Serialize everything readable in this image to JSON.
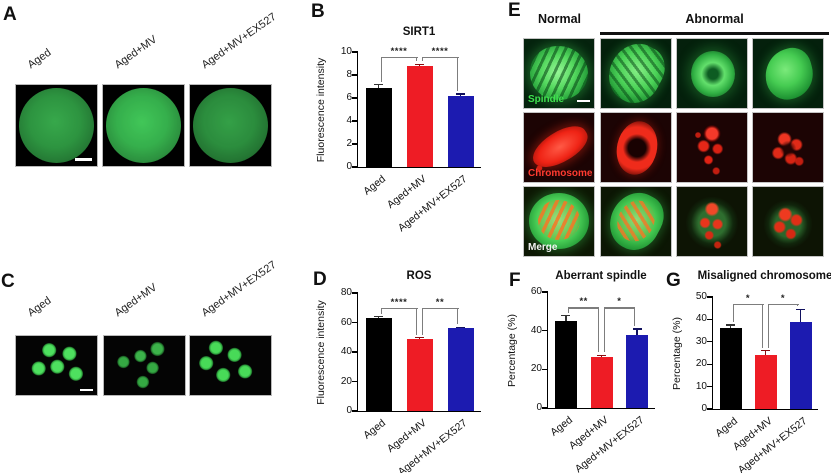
{
  "figure": {
    "panels": {
      "A": {
        "letter": "A",
        "image_labels": [
          "Aged",
          "Aged+MV",
          "Aged+MV+EX527"
        ]
      },
      "B": {
        "letter": "B"
      },
      "C": {
        "letter": "C",
        "image_labels": [
          "Aged",
          "Aged+MV",
          "Aged+MV+EX527"
        ]
      },
      "D": {
        "letter": "D"
      },
      "E": {
        "letter": "E",
        "normal_header": "Normal",
        "abnormal_header": "Abnormal",
        "row_labels": [
          "Spindle",
          "Chromosome",
          "Merge"
        ]
      },
      "F": {
        "letter": "F"
      },
      "G": {
        "letter": "G"
      }
    },
    "colors": {
      "bar_black": "#000000",
      "bar_red": "#ee1c25",
      "bar_blue": "#1c1bb0",
      "spindle_green": "#3fe04e",
      "chromosome_red": "#ff3b30",
      "merge_white": "#f2f2f2"
    }
  },
  "chart_data": [
    {
      "panel": "B",
      "type": "bar",
      "title": "SIRT1",
      "xlabel": "",
      "ylabel": "Fluorescence intensity",
      "categories": [
        "Aged",
        "Aged+MV",
        "Aged+MV+EX527"
      ],
      "values": [
        6.9,
        8.8,
        6.2
      ],
      "errors": [
        0.25,
        0.12,
        0.15
      ],
      "bar_colors": [
        "#000000",
        "#ee1c25",
        "#1c1bb0"
      ],
      "error_colors": [
        "#333333",
        "#8a0d10",
        "#11115e"
      ],
      "ylim": [
        0,
        10
      ],
      "yticks": [
        0,
        2,
        4,
        6,
        8,
        10
      ],
      "grid": false,
      "legend": null,
      "significance": [
        {
          "from": 0,
          "to": 1,
          "label": "****",
          "level": 9.6
        },
        {
          "from": 1,
          "to": 2,
          "label": "****",
          "level": 9.6
        }
      ]
    },
    {
      "panel": "D",
      "type": "bar",
      "title": "ROS",
      "xlabel": "",
      "ylabel": "Fluorescence intensity",
      "categories": [
        "Aged",
        "Aged+MV",
        "Aged+MV+EX527"
      ],
      "values": [
        63,
        48.5,
        56
      ],
      "errors": [
        1,
        1.2,
        0.8
      ],
      "bar_colors": [
        "#000000",
        "#ee1c25",
        "#1c1bb0"
      ],
      "error_colors": [
        "#333333",
        "#8a0d10",
        "#11115e"
      ],
      "ylim": [
        0,
        80
      ],
      "yticks": [
        0,
        20,
        40,
        60,
        80
      ],
      "grid": false,
      "legend": null,
      "significance": [
        {
          "from": 0,
          "to": 1,
          "label": "****",
          "level": 70
        },
        {
          "from": 1,
          "to": 2,
          "label": "**",
          "level": 70
        }
      ]
    },
    {
      "panel": "F",
      "type": "bar",
      "title": "Aberrant spindle",
      "xlabel": "",
      "ylabel": "Percentage (%)",
      "categories": [
        "Aged",
        "Aged+MV",
        "Aged+MV+EX527"
      ],
      "values": [
        45,
        26.5,
        38
      ],
      "errors": [
        2.8,
        0.8,
        2.8
      ],
      "bar_colors": [
        "#000000",
        "#ee1c25",
        "#1c1bb0"
      ],
      "error_colors": [
        "#333333",
        "#8a0d10",
        "#11115e"
      ],
      "ylim": [
        0,
        60
      ],
      "yticks": [
        0,
        20,
        40,
        60
      ],
      "grid": false,
      "legend": null,
      "significance": [
        {
          "from": 0,
          "to": 1,
          "label": "**",
          "level": 52
        },
        {
          "from": 1,
          "to": 2,
          "label": "*",
          "level": 52
        }
      ]
    },
    {
      "panel": "G",
      "type": "bar",
      "title": "Misaligned chromosome",
      "xlabel": "",
      "ylabel": "Percentage (%)",
      "categories": [
        "Aged",
        "Aged+MV",
        "Aged+MV+EX527"
      ],
      "values": [
        36,
        24,
        39
      ],
      "errors": [
        1.5,
        2,
        5.5
      ],
      "bar_colors": [
        "#000000",
        "#ee1c25",
        "#1c1bb0"
      ],
      "error_colors": [
        "#333333",
        "#8a0d10",
        "#11115e"
      ],
      "ylim": [
        0,
        50
      ],
      "yticks": [
        0,
        10,
        20,
        30,
        40,
        50
      ],
      "grid": false,
      "legend": null,
      "significance": [
        {
          "from": 0,
          "to": 1,
          "label": "*",
          "level": 47
        },
        {
          "from": 1,
          "to": 2,
          "label": "*",
          "level": 47
        }
      ]
    }
  ]
}
